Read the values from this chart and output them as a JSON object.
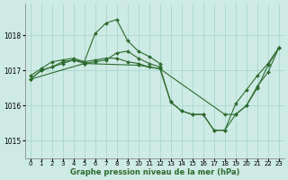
{
  "background_color": "#ceeae4",
  "grid_color": "#a8d8d0",
  "line_color": "#2d6b2d",
  "xlabel": "Graphe pression niveau de la mer (hPa)",
  "xlim": [
    -0.5,
    23.5
  ],
  "ylim": [
    1014.5,
    1018.9
  ],
  "yticks": [
    1015,
    1016,
    1017,
    1018
  ],
  "xticks": [
    0,
    1,
    2,
    3,
    4,
    5,
    6,
    7,
    8,
    9,
    10,
    11,
    12,
    13,
    14,
    15,
    16,
    17,
    18,
    19,
    20,
    21,
    22,
    23
  ],
  "series": [
    {
      "x": [
        0,
        1,
        2,
        3,
        4,
        5,
        6,
        7,
        8,
        9,
        10,
        11,
        12
      ],
      "y": [
        1016.85,
        1017.05,
        1017.25,
        1017.3,
        1017.35,
        1017.25,
        1018.05,
        1018.35,
        1018.45,
        1017.85,
        1017.55,
        1017.4,
        1017.2
      ]
    },
    {
      "x": [
        0,
        1,
        2,
        3,
        4,
        5,
        6,
        7,
        8,
        9,
        10,
        11,
        12,
        13,
        14,
        15,
        16,
        17,
        18,
        19,
        20,
        21,
        22,
        23
      ],
      "y": [
        1016.75,
        1017.0,
        1017.1,
        1017.2,
        1017.3,
        1017.25,
        1017.3,
        1017.35,
        1017.35,
        1017.25,
        1017.2,
        1017.1,
        1017.05,
        1016.1,
        1015.85,
        1015.75,
        1015.75,
        1015.3,
        1015.3,
        1015.75,
        1016.0,
        1016.55,
        1016.95,
        1017.65
      ]
    },
    {
      "x": [
        0,
        1,
        2,
        3,
        4,
        5,
        6,
        7,
        8,
        9,
        10,
        11,
        12,
        13,
        14,
        15,
        16,
        17,
        18,
        19,
        20,
        21,
        22,
        23
      ],
      "y": [
        1016.75,
        1017.0,
        1017.1,
        1017.25,
        1017.3,
        1017.2,
        1017.25,
        1017.3,
        1017.5,
        1017.55,
        1017.35,
        1017.2,
        1017.1,
        1016.1,
        1015.85,
        1015.75,
        1015.75,
        1015.3,
        1015.3,
        1016.05,
        1016.45,
        1016.85,
        1017.2,
        1017.65
      ]
    },
    {
      "x": [
        0,
        5,
        10,
        12,
        18,
        19,
        20,
        21,
        22,
        23
      ],
      "y": [
        1016.75,
        1017.2,
        1017.15,
        1017.05,
        1015.75,
        1015.75,
        1016.0,
        1016.5,
        1017.15,
        1017.65
      ]
    }
  ]
}
